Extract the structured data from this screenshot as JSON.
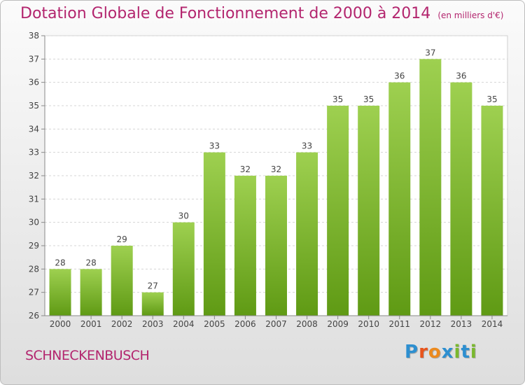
{
  "header": {
    "title": "Dotation Globale de Fonctionnement de 2000 à 2014",
    "subtitle": "(en milliers d'€)"
  },
  "commune": "SCHNECKENBUSCH",
  "logo": {
    "text": "Proxiti",
    "letters": [
      "P",
      "r",
      "o",
      "x",
      "i",
      "t",
      "i"
    ],
    "colors": [
      "#2d8fd0",
      "#e8541c",
      "#ec8a1e",
      "#2d8fd0",
      "#7ab82e",
      "#2d8fd0",
      "#7ab82e"
    ]
  },
  "colors": {
    "bar_top": "#9ed050",
    "bar_bottom": "#5f9a14",
    "accent": "#b3256e"
  },
  "chart_data": {
    "type": "bar",
    "title": "Dotation Globale de Fonctionnement de 2000 à 2014",
    "subtitle": "(en milliers d'€)",
    "categories": [
      "2000",
      "2001",
      "2002",
      "2003",
      "2004",
      "2005",
      "2006",
      "2007",
      "2008",
      "2009",
      "2010",
      "2011",
      "2012",
      "2013",
      "2014"
    ],
    "values": [
      28,
      28,
      29,
      27,
      30,
      33,
      32,
      32,
      33,
      35,
      35,
      36,
      37,
      36,
      35
    ],
    "ylim": [
      26,
      38
    ],
    "yticks": [
      26,
      27,
      28,
      29,
      30,
      31,
      32,
      33,
      34,
      35,
      36,
      37,
      38
    ],
    "grid": true,
    "legend": "none"
  }
}
